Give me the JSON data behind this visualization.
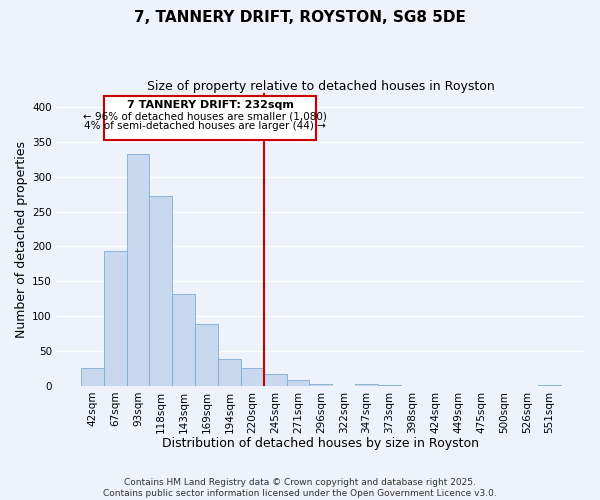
{
  "title": "7, TANNERY DRIFT, ROYSTON, SG8 5DE",
  "subtitle": "Size of property relative to detached houses in Royston",
  "xlabel": "Distribution of detached houses by size in Royston",
  "ylabel": "Number of detached properties",
  "bin_labels": [
    "42sqm",
    "67sqm",
    "93sqm",
    "118sqm",
    "143sqm",
    "169sqm",
    "194sqm",
    "220sqm",
    "245sqm",
    "271sqm",
    "296sqm",
    "322sqm",
    "347sqm",
    "373sqm",
    "398sqm",
    "424sqm",
    "449sqm",
    "475sqm",
    "500sqm",
    "526sqm",
    "551sqm"
  ],
  "bar_heights": [
    25,
    193,
    333,
    272,
    132,
    88,
    38,
    25,
    17,
    8,
    2,
    0,
    3,
    1,
    0,
    0,
    0,
    0,
    0,
    0,
    1
  ],
  "bar_color": "#c8d8ee",
  "bar_edge_color": "#7fadd4",
  "vline_color": "#cc0000",
  "ylim": [
    0,
    420
  ],
  "yticks": [
    0,
    50,
    100,
    150,
    200,
    250,
    300,
    350,
    400
  ],
  "annotation_title": "7 TANNERY DRIFT: 232sqm",
  "annotation_line1": "← 96% of detached houses are smaller (1,080)",
  "annotation_line2": "4% of semi-detached houses are larger (44) →",
  "annotation_box_color": "#ffffff",
  "annotation_box_edge": "#cc0000",
  "footer_line1": "Contains HM Land Registry data © Crown copyright and database right 2025.",
  "footer_line2": "Contains public sector information licensed under the Open Government Licence v3.0.",
  "background_color": "#eef2fa",
  "grid_color": "#ffffff",
  "title_fontsize": 11,
  "subtitle_fontsize": 9,
  "axis_label_fontsize": 9,
  "tick_fontsize": 7.5,
  "footer_fontsize": 6.5,
  "annot_title_fontsize": 8,
  "annot_text_fontsize": 7.5
}
